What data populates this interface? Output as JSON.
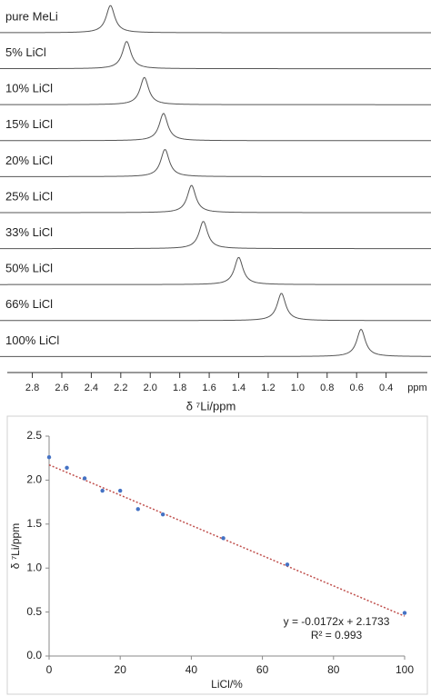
{
  "chart_data": [
    {
      "type": "spectra",
      "xlabel": "δ ⁷Li/ppm",
      "x_unit": "ppm",
      "xlim": [
        2.97,
        0.12
      ],
      "xticks": [
        2.8,
        2.6,
        2.4,
        2.2,
        {
          "value": 2.0,
          "label": "2.0"
        },
        1.8,
        1.6,
        1.4,
        1.2,
        {
          "value": 1.0,
          "label": "1.0"
        },
        0.8,
        0.6,
        0.4
      ],
      "color": "#555555",
      "series": [
        {
          "name": "pure MeLi",
          "peak": 2.27
        },
        {
          "name": "5% LiCl",
          "peak": 2.16
        },
        {
          "name": "10% LiCl",
          "peak": 2.04
        },
        {
          "name": "15% LiCl",
          "peak": 1.91
        },
        {
          "name": "20% LiCl",
          "peak": 1.9
        },
        {
          "name": "25% LiCl",
          "peak": 1.72
        },
        {
          "name": "33% LiCl",
          "peak": 1.64
        },
        {
          "name": "50% LiCl",
          "peak": 1.4
        },
        {
          "name": "66% LiCl",
          "peak": 1.11
        },
        {
          "name": "100% LiCl",
          "peak": 0.57
        }
      ]
    },
    {
      "type": "scatter",
      "xlabel": "LiCl/%",
      "ylabel": "δ ⁷Li/ppm",
      "x": [
        0,
        5,
        10,
        15,
        20,
        25,
        32,
        49,
        67,
        100
      ],
      "values": [
        2.26,
        2.14,
        2.02,
        1.88,
        1.88,
        1.67,
        1.61,
        1.34,
        1.04,
        0.49
      ],
      "color": "#4472c4",
      "xlim": [
        0,
        100
      ],
      "xticks": [
        0,
        20,
        40,
        60,
        80,
        100
      ],
      "ylim": [
        0,
        2.5
      ],
      "yticks": [
        {
          "value": 0,
          "label": "0.0"
        },
        0.5,
        {
          "value": 1,
          "label": "1.0"
        },
        1.5,
        {
          "value": 2,
          "label": "2.0"
        },
        2.5
      ],
      "trendline": {
        "slope": -0.0172,
        "intercept": 2.1733,
        "color": "#c0504d",
        "label": "y = -0.0172x + 2.1733",
        "r2_label": "R² = 0.993"
      }
    }
  ]
}
